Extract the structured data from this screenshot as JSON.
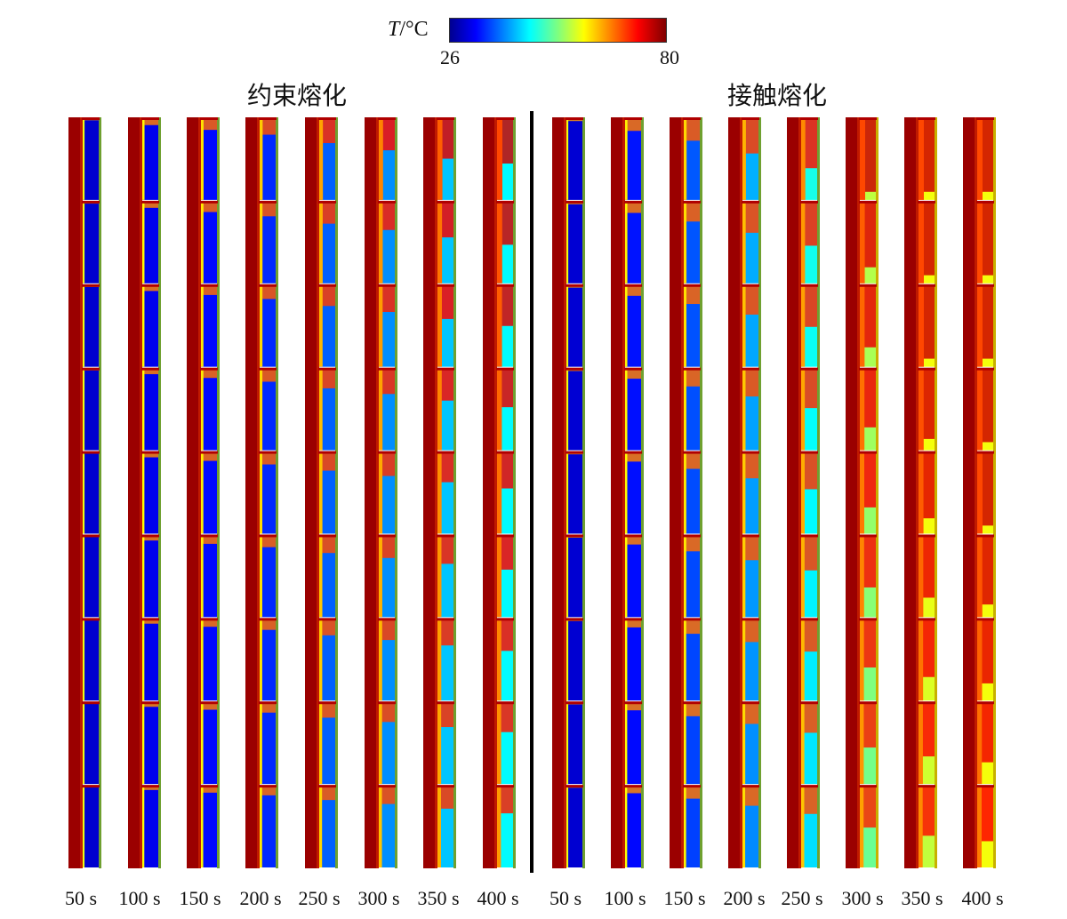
{
  "colorbar": {
    "symbol": "T",
    "unit": "/°C",
    "min_label": "26",
    "max_label": "80",
    "min_value": 26,
    "max_value": 80
  },
  "groups": [
    {
      "title": "约束熔化",
      "times": [
        "50 s",
        "100 s",
        "150 s",
        "200 s",
        "250 s",
        "300 s",
        "350 s",
        "400 s"
      ],
      "progress": [
        0.02,
        0.1,
        0.18,
        0.26,
        0.4,
        0.52,
        0.66,
        0.8
      ]
    },
    {
      "title": "接触熔化",
      "times": [
        "50 s",
        "100 s",
        "150 s",
        "200 s",
        "250 s",
        "300 s",
        "350 s",
        "400 s"
      ],
      "progress": [
        0.02,
        0.12,
        0.22,
        0.35,
        0.5,
        0.75,
        0.9,
        1.0
      ]
    }
  ]
}
